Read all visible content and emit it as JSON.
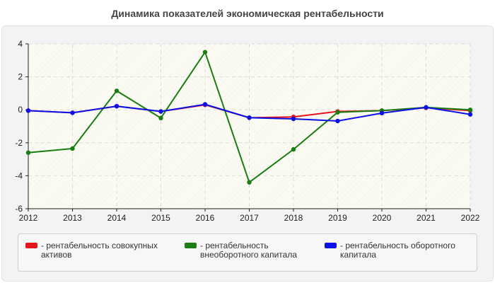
{
  "page": {
    "title": "Динамика показателей экономическая рентабельности"
  },
  "chart_data": {
    "type": "line",
    "title": "Динамика показателей экономическая рентабельности",
    "xlabel": "",
    "ylabel": "",
    "x": [
      "2012",
      "2013",
      "2014",
      "2015",
      "2016",
      "2017",
      "2018",
      "2019",
      "2020",
      "2021",
      "2022"
    ],
    "ylim": [
      -6,
      4
    ],
    "yticks": [
      4,
      2,
      0,
      -2,
      -4,
      -6
    ],
    "grid": true,
    "legend_position": "bottom",
    "series": [
      {
        "name": "- рентабельность совокупных активов",
        "color": "#e8141b",
        "values": [
          -0.05,
          -0.18,
          0.22,
          -0.1,
          0.3,
          -0.48,
          -0.43,
          -0.1,
          -0.05,
          0.12,
          -0.05
        ]
      },
      {
        "name": "- рентабельность внеоборотного капитала",
        "color": "#1a7d12",
        "values": [
          -2.6,
          -2.35,
          1.15,
          -0.5,
          3.5,
          -4.4,
          -2.4,
          -0.15,
          -0.05,
          0.15,
          0.0
        ]
      },
      {
        "name": "- рентабельность оборотного капитала",
        "color": "#0b12e8",
        "values": [
          -0.05,
          -0.18,
          0.22,
          -0.1,
          0.33,
          -0.48,
          -0.55,
          -0.68,
          -0.2,
          0.15,
          -0.28
        ]
      }
    ]
  }
}
